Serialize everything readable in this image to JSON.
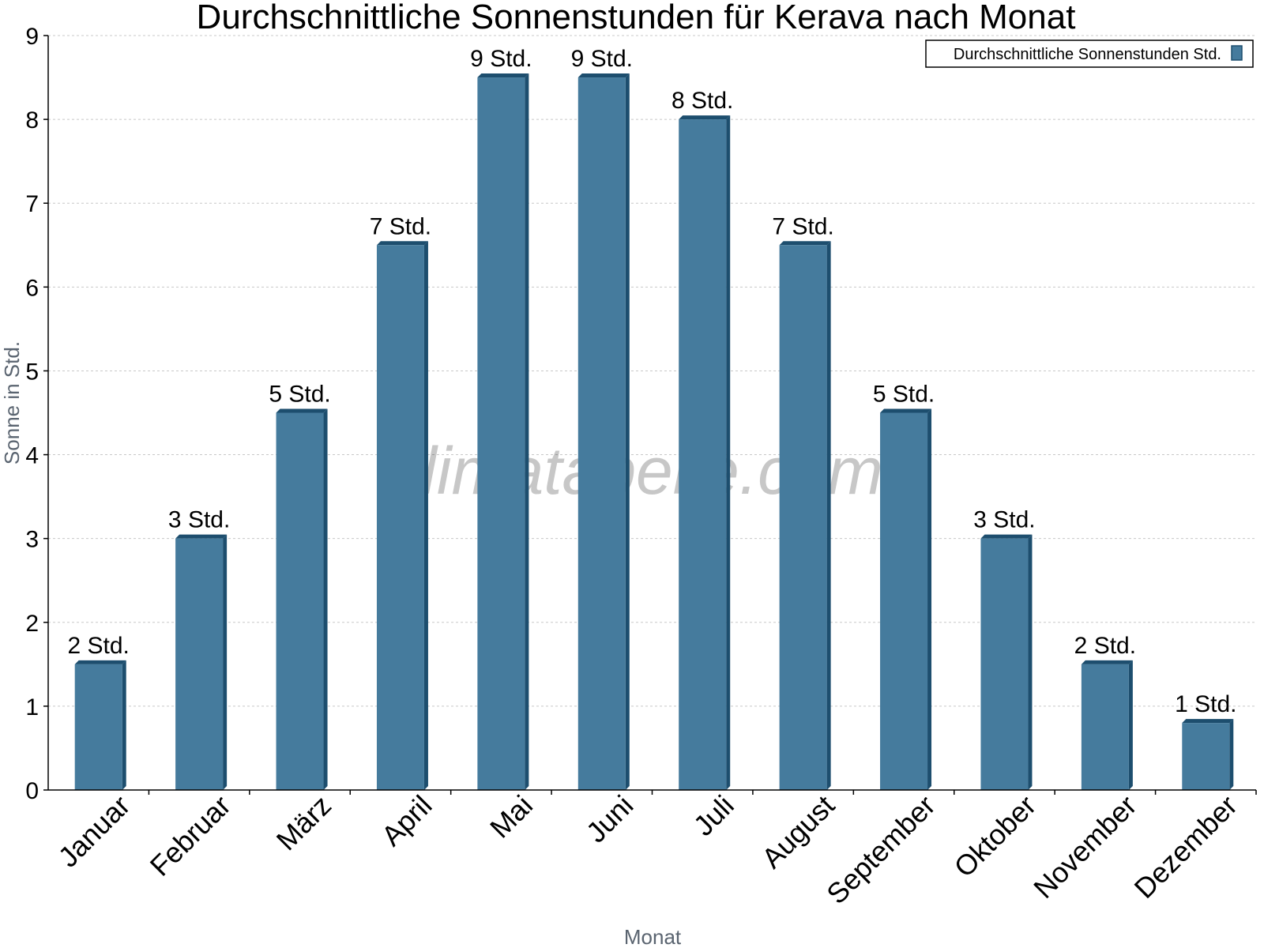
{
  "chart_data": {
    "type": "bar",
    "title": "Durchschnittliche Sonnenstunden für Kerava nach Monat",
    "xlabel": "Monat",
    "ylabel": "Sonne in Std.",
    "ylim": [
      0,
      9
    ],
    "yticks": [
      0,
      1,
      2,
      3,
      4,
      5,
      6,
      7,
      8,
      9
    ],
    "grid": true,
    "legend_position": "top-right",
    "categories": [
      "Januar",
      "Februar",
      "März",
      "April",
      "Mai",
      "Juni",
      "Juli",
      "August",
      "September",
      "Oktober",
      "November",
      "Dezember"
    ],
    "series": [
      {
        "name": "Durchschnittliche Sonnenstunden Std.",
        "values": [
          1.5,
          3,
          4.5,
          6.5,
          8.5,
          8.5,
          8,
          6.5,
          4.5,
          3,
          1.5,
          0.8
        ],
        "labels": [
          "2 Std.",
          "3 Std.",
          "5 Std.",
          "7 Std.",
          "9 Std.",
          "9 Std.",
          "8 Std.",
          "7 Std.",
          "5 Std.",
          "3 Std.",
          "2 Std.",
          "1 Std."
        ],
        "color": "#457b9d",
        "edge_color": "#1d4e6e"
      }
    ],
    "watermark": "klimatabelle.com"
  }
}
